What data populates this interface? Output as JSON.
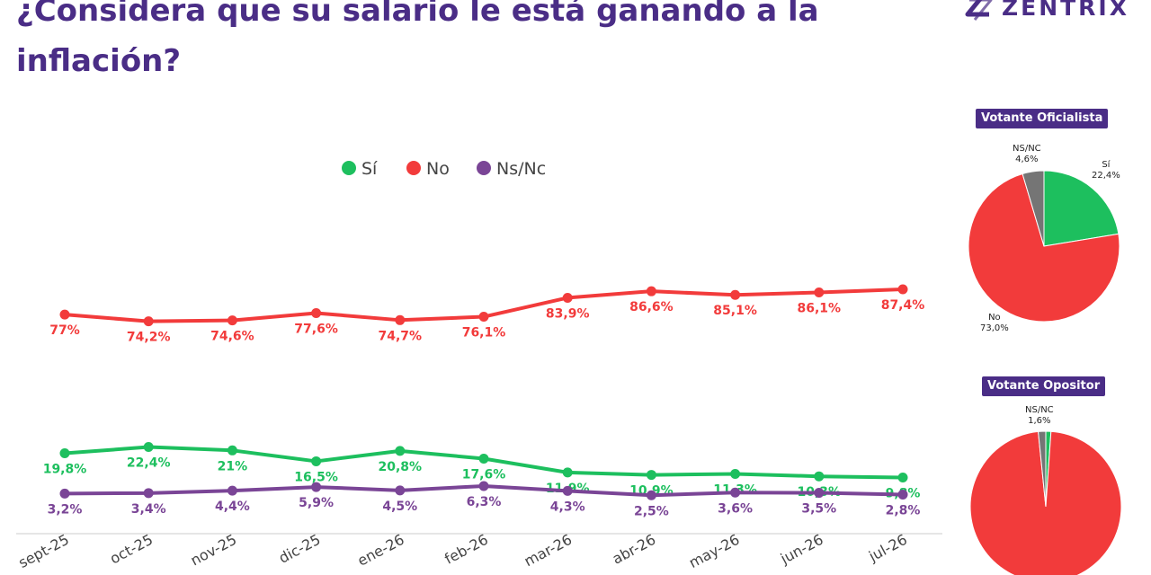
{
  "title": "¿Considera que su salario le está ganando a la inflación?",
  "logo": {
    "text": "ZENTRIX",
    "icon": "zentrix-logo-icon"
  },
  "colors": {
    "si": "#1dbf5e",
    "no": "#f23b3b",
    "nsnc": "#7a4596",
    "gray": "#757575",
    "brand": "#4a2d86",
    "axis": "#cccccc"
  },
  "chart_data": [
    {
      "type": "line",
      "title": "",
      "xlabel": "",
      "ylabel": "",
      "categories": [
        "sept-25",
        "oct-25",
        "nov-25",
        "dic-25",
        "ene-26",
        "feb-26",
        "mar-26",
        "abr-26",
        "may-26",
        "jun-26",
        "jul-26"
      ],
      "series": [
        {
          "name": "Sí",
          "values": [
            19.8,
            22.4,
            21,
            16.5,
            20.8,
            17.6,
            11.9,
            10.9,
            11.3,
            10.3,
            9.8
          ],
          "labels": [
            "19,8%",
            "22,4%",
            "21%",
            "16,5%",
            "20,8%",
            "17,6%",
            "11,9%",
            "10,9%",
            "11,3%",
            "10,3%",
            "9,8%"
          ]
        },
        {
          "name": "No",
          "values": [
            77,
            74.2,
            74.6,
            77.6,
            74.7,
            76.1,
            83.9,
            86.6,
            85.1,
            86.1,
            87.4
          ],
          "labels": [
            "77%",
            "74,2%",
            "74,6%",
            "77,6%",
            "74,7%",
            "76,1%",
            "83,9%",
            "86,6%",
            "85,1%",
            "86,1%",
            "87,4%"
          ]
        },
        {
          "name": "Ns/Nc",
          "values": [
            3.2,
            3.4,
            4.4,
            5.9,
            4.5,
            6.3,
            4.3,
            2.5,
            3.6,
            3.5,
            2.8
          ],
          "labels": [
            "3,2%",
            "3,4%",
            "4,4%",
            "5,9%",
            "4,5%",
            "6,3%",
            "4,3%",
            "2,5%",
            "3,6%",
            "3,5%",
            "2,8%"
          ]
        }
      ],
      "legend": "top-center",
      "grid": false
    },
    {
      "type": "pie",
      "title": "Votante Oficialista",
      "slices": [
        {
          "name": "Sí",
          "value": 22.4,
          "label": "22,4%"
        },
        {
          "name": "No",
          "value": 73.0,
          "label": "73,0%"
        },
        {
          "name": "NS/NC",
          "value": 4.6,
          "label": "4,6%"
        }
      ]
    },
    {
      "type": "pie",
      "title": "Votante Opositor",
      "slices": [
        {
          "name": "Sí",
          "value": 1.1,
          "label": ""
        },
        {
          "name": "No",
          "value": 97.3,
          "label": ""
        },
        {
          "name": "NS/NC",
          "value": 1.6,
          "label": "1,6%"
        }
      ]
    }
  ]
}
